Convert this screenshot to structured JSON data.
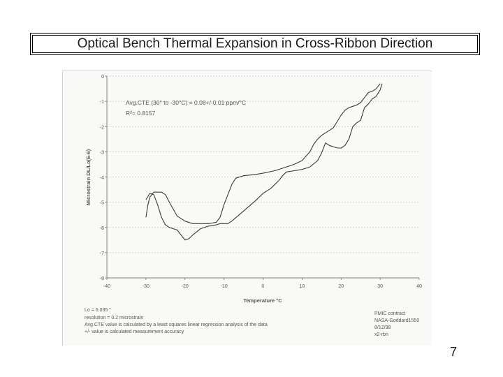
{
  "slide": {
    "title": "Optical Bench Thermal Expansion in Cross-Ribbon Direction",
    "page_number": "7"
  },
  "chart_data": {
    "type": "line",
    "title": "",
    "xlabel": "Temperature °C",
    "ylabel": "Microstrain DL/Lo(E-6)",
    "xlim": [
      -40,
      40
    ],
    "ylim": [
      -8,
      0
    ],
    "xticks": [
      -40,
      -30,
      -20,
      -10,
      0,
      10,
      20,
      30,
      40
    ],
    "yticks": [
      0,
      -1,
      -2,
      -3,
      -4,
      -5,
      -6,
      -7,
      -8
    ],
    "grid": true,
    "colors": {
      "line": "#3a3a3a",
      "grid": "#c8c8c8",
      "text": "#555555"
    },
    "annotation": {
      "cte_line": "Avg.CTE (30° to -30°C) = 0.08+/-0.01 ppm/°C",
      "r2_line": "R²= 0.8157"
    },
    "series": [
      {
        "x": [
          -30,
          -29.5,
          -29,
          -28,
          -27,
          -26,
          -25,
          -24,
          -22,
          -20,
          -18,
          -16,
          -14,
          -12,
          -11,
          -10,
          -9,
          -8,
          -7,
          -5,
          -2,
          0,
          3,
          6,
          8,
          10,
          12,
          13,
          14,
          15,
          16,
          17,
          18,
          19,
          20,
          21,
          22,
          23,
          24,
          25,
          26,
          27,
          28,
          29,
          30
        ],
        "y": [
          -5.6,
          -5.1,
          -4.8,
          -4.6,
          -4.6,
          -4.6,
          -4.7,
          -5.0,
          -5.55,
          -5.75,
          -5.85,
          -5.85,
          -5.85,
          -5.8,
          -5.6,
          -5.1,
          -4.7,
          -4.3,
          -4.05,
          -3.95,
          -3.9,
          -3.85,
          -3.75,
          -3.6,
          -3.5,
          -3.35,
          -3.0,
          -2.7,
          -2.5,
          -2.35,
          -2.25,
          -2.15,
          -2.05,
          -1.8,
          -1.55,
          -1.35,
          -1.25,
          -1.2,
          -1.15,
          -1.05,
          -0.85,
          -0.65,
          -0.6,
          -0.5,
          -0.3
        ]
      },
      {
        "x": [
          30.5,
          30,
          29,
          28,
          27,
          26,
          25,
          24,
          23,
          22,
          21,
          20,
          19,
          18,
          17,
          16,
          15,
          14,
          12,
          10,
          8,
          6,
          5,
          4,
          3,
          2,
          0,
          -2,
          -5,
          -8,
          -9,
          -10,
          -11,
          -12,
          -14,
          -16,
          -18,
          -19,
          -20,
          -21,
          -22,
          -23,
          -24,
          -25,
          -26,
          -27,
          -28,
          -29,
          -30
        ],
        "y": [
          -0.3,
          -0.55,
          -0.8,
          -0.9,
          -1.1,
          -1.25,
          -1.75,
          -1.85,
          -2.0,
          -2.5,
          -2.75,
          -2.85,
          -2.85,
          -2.8,
          -2.75,
          -2.65,
          -3.05,
          -3.35,
          -3.6,
          -3.7,
          -3.75,
          -3.8,
          -3.95,
          -4.15,
          -4.3,
          -4.45,
          -4.65,
          -4.95,
          -5.35,
          -5.75,
          -5.85,
          -5.85,
          -5.85,
          -5.9,
          -5.95,
          -6.05,
          -6.3,
          -6.45,
          -6.5,
          -6.3,
          -6.1,
          -6.05,
          -6.0,
          -5.9,
          -5.6,
          -5.1,
          -4.7,
          -4.65,
          -4.9
        ]
      }
    ],
    "notes_left": [
      "Lo = 6.035 \"",
      "resolution = 0.2 microstrain",
      "Avg.CTE value is calculated by a least squares linear regression analysis of the data",
      "+/- value is calculated measurement accuracy"
    ],
    "notes_right": [
      "PMIC contract",
      "NASA-Goddard1550",
      "8/12/98",
      "x2-rbn"
    ]
  }
}
